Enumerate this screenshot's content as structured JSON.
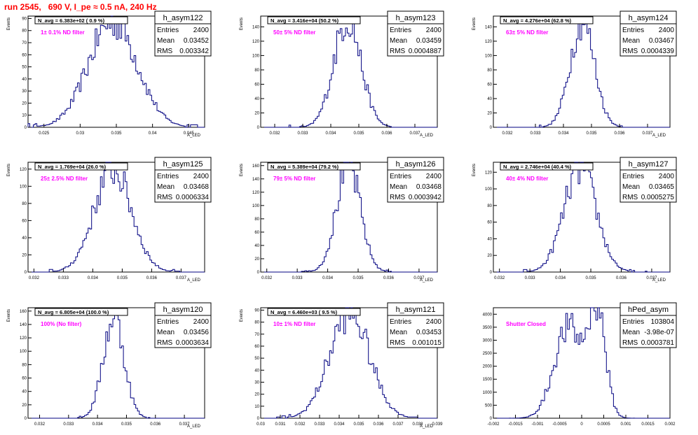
{
  "header": {
    "title": "run 2545,   690 V, I_pe ≈ 0.5 nA, 240 Hz"
  },
  "colors": {
    "title": "#ff0000",
    "histogram": "#000080",
    "annotation": "#ff00ff",
    "axis": "#000000"
  },
  "chart_data": [
    {
      "type": "histogram",
      "name": "h_asym122",
      "nhead": "N_avg = 6.383e+02 ( 0.9 %)",
      "annotation": "1± 0.1% ND filter",
      "stats": {
        "entries": "2400",
        "mean": "0.03452",
        "rms": "0.003342"
      },
      "xlabel": "A_LED",
      "ylabel": "Events",
      "xlim": [
        0.0228,
        0.0472
      ],
      "ylim": [
        0,
        92
      ],
      "xticks": [
        "0.025",
        "0.03",
        "0.035",
        "0.04",
        "0.045"
      ],
      "yticks": [
        0,
        10,
        20,
        30,
        40,
        50,
        60,
        70,
        80,
        90
      ],
      "gen": {
        "mu": 0.03452,
        "sigma": 0.003342,
        "peak": 88
      }
    },
    {
      "type": "histogram",
      "name": "h_asym123",
      "nhead": "N_avg = 3.416e+04 (50.2 %)",
      "annotation": "50± 5% ND filter",
      "stats": {
        "entries": "2400",
        "mean": "0.03459",
        "rms": "0.0004887"
      },
      "xlabel": "A_LED",
      "ylabel": "Events",
      "xlim": [
        0.0315,
        0.0378
      ],
      "ylim": [
        0,
        155
      ],
      "xticks": [
        "0.032",
        "0.033",
        "0.034",
        "0.035",
        "0.036",
        "0.037"
      ],
      "yticks": [
        0,
        20,
        40,
        60,
        80,
        100,
        120,
        140
      ],
      "gen": {
        "mu": 0.03459,
        "sigma": 0.0004887,
        "peak": 150
      }
    },
    {
      "type": "histogram",
      "name": "h_asym124",
      "nhead": "N_avg = 4.276e+04 (62.8 %)",
      "annotation": "63± 5% ND filter",
      "stats": {
        "entries": "2400",
        "mean": "0.03467",
        "rms": "0.0004339"
      },
      "xlabel": "A_LED",
      "ylabel": "Events",
      "xlim": [
        0.0315,
        0.0378
      ],
      "ylim": [
        0,
        155
      ],
      "xticks": [
        "0.032",
        "0.033",
        "0.034",
        "0.035",
        "0.036",
        "0.037"
      ],
      "yticks": [
        0,
        20,
        40,
        60,
        80,
        100,
        120,
        140
      ],
      "gen": {
        "mu": 0.03467,
        "sigma": 0.0004339,
        "peak": 148
      }
    },
    {
      "type": "histogram",
      "name": "h_asym125",
      "nhead": "N_avg = 1.769e+04 (26.0 %)",
      "annotation": "25± 2.5% ND filter",
      "stats": {
        "entries": "2400",
        "mean": "0.03468",
        "rms": "0.0006334"
      },
      "xlabel": "A_LED",
      "ylabel": "Events",
      "xlim": [
        0.0318,
        0.0378
      ],
      "ylim": [
        0,
        128
      ],
      "xticks": [
        "0.032",
        "0.033",
        "0.034",
        "0.035",
        "0.036",
        "0.037"
      ],
      "yticks": [
        0,
        20,
        40,
        60,
        80,
        100,
        120
      ],
      "gen": {
        "mu": 0.03468,
        "sigma": 0.0006334,
        "peak": 120
      }
    },
    {
      "type": "histogram",
      "name": "h_asym126",
      "nhead": "N_avg = 5.389e+04 (79.2 %)",
      "annotation": "79± 5% ND filter",
      "stats": {
        "entries": "2400",
        "mean": "0.03468",
        "rms": "0.0003942"
      },
      "xlabel": "A_LED",
      "ylabel": "Events",
      "xlim": [
        0.0318,
        0.0376
      ],
      "ylim": [
        0,
        165
      ],
      "xticks": [
        "0.032",
        "0.033",
        "0.034",
        "0.035",
        "0.036",
        "0.037"
      ],
      "yticks": [
        0,
        20,
        40,
        60,
        80,
        100,
        120,
        140,
        160
      ],
      "gen": {
        "mu": 0.03468,
        "sigma": 0.0003942,
        "peak": 160
      }
    },
    {
      "type": "histogram",
      "name": "h_asym127",
      "nhead": "N_avg = 2.746e+04 (40.4 %)",
      "annotation": "40± 4% ND filter",
      "stats": {
        "entries": "2400",
        "mean": "0.03465",
        "rms": "0.0005275"
      },
      "xlabel": "A_LED",
      "ylabel": "Events",
      "xlim": [
        0.0318,
        0.0376
      ],
      "ylim": [
        0,
        132
      ],
      "xticks": [
        "0.032",
        "0.033",
        "0.034",
        "0.035",
        "0.036",
        "0.037"
      ],
      "yticks": [
        0,
        20,
        40,
        60,
        80,
        100,
        120
      ],
      "gen": {
        "mu": 0.03465,
        "sigma": 0.0005275,
        "peak": 125
      }
    },
    {
      "type": "histogram",
      "name": "h_asym120",
      "nhead": "N_avg = 6.805e+04 (100.0 %)",
      "annotation": "100% (No filter)",
      "stats": {
        "entries": "2400",
        "mean": "0.03456",
        "rms": "0.0003634"
      },
      "xlabel": "A_LED",
      "ylabel": "Events",
      "xlim": [
        0.0316,
        0.0377
      ],
      "ylim": [
        0,
        165
      ],
      "xticks": [
        "0.032",
        "0.033",
        "0.034",
        "0.035",
        "0.036",
        "0.037"
      ],
      "yticks": [
        0,
        20,
        40,
        60,
        80,
        100,
        120,
        140,
        160
      ],
      "gen": {
        "mu": 0.03456,
        "sigma": 0.0003634,
        "peak": 150
      }
    },
    {
      "type": "histogram",
      "name": "h_asym121",
      "nhead": "N_avg = 6.460e+03 ( 9.5 %)",
      "annotation": "10± 1% ND filter",
      "stats": {
        "entries": "2400",
        "mean": "0.03453",
        "rms": "0.001015"
      },
      "xlabel": "A_LED",
      "ylabel": "Events",
      "xlim": [
        0.03,
        0.039
      ],
      "ylim": [
        0,
        92
      ],
      "xticks": [
        "0.03",
        "0.031",
        "0.032",
        "0.033",
        "0.034",
        "0.035",
        "0.036",
        "0.037",
        "0.038",
        "0.039"
      ],
      "yticks": [
        0,
        10,
        20,
        30,
        40,
        50,
        60,
        70,
        80,
        90
      ],
      "gen": {
        "mu": 0.03453,
        "sigma": 0.001015,
        "peak": 88
      }
    },
    {
      "type": "histogram",
      "name": "hPed_asym",
      "nhead": "",
      "annotation": "Shutter Closed",
      "stats": {
        "entries": "103804",
        "mean": "-3.98e-07",
        "rms": "0.0003781"
      },
      "xlabel": "",
      "ylabel": "",
      "xlim": [
        -0.002,
        0.002
      ],
      "ylim": [
        0,
        4250
      ],
      "xticks": [
        "-0.002",
        "-0.0015",
        "-0.001",
        "-0.0005",
        "0",
        "0.0005",
        "0.001",
        "0.0015",
        "0.002"
      ],
      "yticks": [
        0,
        500,
        1000,
        1500,
        2000,
        2500,
        3000,
        3500,
        4000
      ],
      "gen": {
        "mu": -4e-07,
        "sigma": 0.0003781,
        "peak": 4050,
        "bimodal": true
      }
    }
  ]
}
